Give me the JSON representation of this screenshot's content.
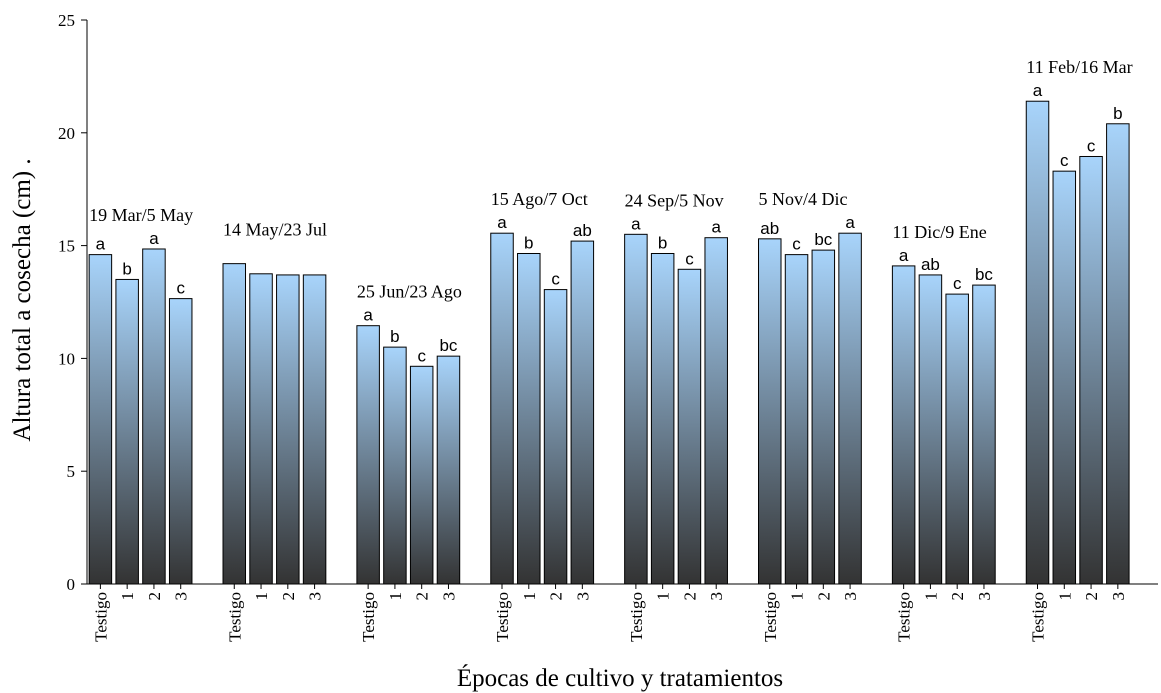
{
  "chart_data": {
    "type": "bar",
    "title": "",
    "xlabel": "Épocas de cultivo y tratamientos",
    "ylabel": "Altura total a cosecha (cm)  .",
    "ylim": [
      0,
      25
    ],
    "yticks": [
      0,
      5,
      10,
      15,
      20,
      25
    ],
    "grid": false,
    "legend": "none",
    "bar_colors": {
      "top": "#a8d4fb",
      "bottom": "#333333",
      "edge": "#000000"
    },
    "groups": [
      {
        "label": "19 Mar/5 May",
        "bars": [
          {
            "tick": "Testigo",
            "value": 14.6,
            "sig": "a"
          },
          {
            "tick": "1",
            "value": 13.5,
            "sig": "b"
          },
          {
            "tick": "2",
            "value": 14.85,
            "sig": "a"
          },
          {
            "tick": "3",
            "value": 12.65,
            "sig": "c"
          }
        ]
      },
      {
        "label": "14 May/23 Jul",
        "bars": [
          {
            "tick": "Testigo",
            "value": 14.2,
            "sig": ""
          },
          {
            "tick": "1",
            "value": 13.75,
            "sig": ""
          },
          {
            "tick": "2",
            "value": 13.7,
            "sig": ""
          },
          {
            "tick": "3",
            "value": 13.7,
            "sig": ""
          }
        ]
      },
      {
        "label": "25 Jun/23 Ago",
        "bars": [
          {
            "tick": "Testigo",
            "value": 11.45,
            "sig": "a"
          },
          {
            "tick": "1",
            "value": 10.5,
            "sig": "b"
          },
          {
            "tick": "2",
            "value": 9.65,
            "sig": "c"
          },
          {
            "tick": "3",
            "value": 10.1,
            "sig": "bc"
          }
        ]
      },
      {
        "label": "15 Ago/7 Oct",
        "bars": [
          {
            "tick": "Testigo",
            "value": 15.55,
            "sig": "a"
          },
          {
            "tick": "1",
            "value": 14.65,
            "sig": "b"
          },
          {
            "tick": "2",
            "value": 13.05,
            "sig": "c"
          },
          {
            "tick": "3",
            "value": 15.2,
            "sig": "ab"
          }
        ]
      },
      {
        "label": "24 Sep/5 Nov",
        "bars": [
          {
            "tick": "Testigo",
            "value": 15.5,
            "sig": "a"
          },
          {
            "tick": "1",
            "value": 14.65,
            "sig": "b"
          },
          {
            "tick": "2",
            "value": 13.95,
            "sig": "c"
          },
          {
            "tick": "3",
            "value": 15.35,
            "sig": "a"
          }
        ]
      },
      {
        "label": "5 Nov/4 Dic",
        "bars": [
          {
            "tick": "Testigo",
            "value": 15.3,
            "sig": "ab"
          },
          {
            "tick": "1",
            "value": 14.6,
            "sig": "c"
          },
          {
            "tick": "2",
            "value": 14.8,
            "sig": "bc"
          },
          {
            "tick": "3",
            "value": 15.55,
            "sig": "a"
          }
        ]
      },
      {
        "label": "11 Dic/9 Ene",
        "bars": [
          {
            "tick": "Testigo",
            "value": 14.1,
            "sig": "a"
          },
          {
            "tick": "1",
            "value": 13.7,
            "sig": "ab"
          },
          {
            "tick": "2",
            "value": 12.85,
            "sig": "c"
          },
          {
            "tick": "3",
            "value": 13.25,
            "sig": "bc"
          }
        ]
      },
      {
        "label": "11 Feb/16 Mar",
        "bars": [
          {
            "tick": "Testigo",
            "value": 21.4,
            "sig": "a"
          },
          {
            "tick": "1",
            "value": 18.3,
            "sig": "c"
          },
          {
            "tick": "2",
            "value": 18.95,
            "sig": "c"
          },
          {
            "tick": "3",
            "value": 20.4,
            "sig": "b"
          }
        ]
      }
    ]
  }
}
